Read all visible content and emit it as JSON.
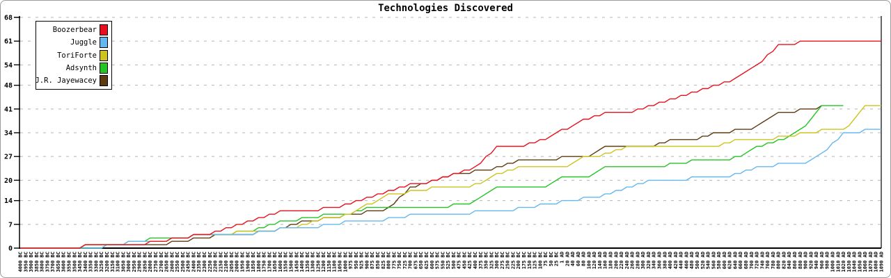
{
  "title": "Technologies Discovered",
  "colors": {
    "background": "#ffffff",
    "axis": "#000000",
    "gridline": "#b4b4b4",
    "border": "#9a9a9a"
  },
  "legend": {
    "position": "top-left"
  },
  "chart_data": {
    "type": "line",
    "title": "Technologies Discovered",
    "xlabel": "",
    "ylabel": "",
    "ylim": [
      0,
      68
    ],
    "grid": "horizontal dashed",
    "legend_position": "top-left",
    "y_ticks": [
      0,
      7,
      14,
      20,
      27,
      34,
      41,
      48,
      54,
      61,
      68
    ],
    "x_tick_labels": [
      "4000 BC",
      "3950 BC",
      "3900 BC",
      "3850 BC",
      "3800 BC",
      "3750 BC",
      "3700 BC",
      "3650 BC",
      "3600 BC",
      "3550 BC",
      "3500 BC",
      "3450 BC",
      "3400 BC",
      "3350 BC",
      "3300 BC",
      "3250 BC",
      "3200 BC",
      "3150 BC",
      "3100 BC",
      "3050 BC",
      "3000 BC",
      "2950 BC",
      "2900 BC",
      "2850 BC",
      "2800 BC",
      "2750 BC",
      "2700 BC",
      "2650 BC",
      "2600 BC",
      "2550 BC",
      "2500 BC",
      "2450 BC",
      "2400 BC",
      "2350 BC",
      "2300 BC",
      "2250 BC",
      "2200 BC",
      "2150 BC",
      "2100 BC",
      "2050 BC",
      "2000 BC",
      "1950 BC",
      "1900 BC",
      "1850 BC",
      "1800 BC",
      "1750 BC",
      "1700 BC",
      "1650 BC",
      "1600 BC",
      "1550 BC",
      "1500 BC",
      "1450 BC",
      "1400 BC",
      "1350 BC",
      "1300 BC",
      "1250 BC",
      "1200 BC",
      "1150 BC",
      "1100 BC",
      "1050 BC",
      "1000 BC",
      "975 BC",
      "950 BC",
      "925 BC",
      "900 BC",
      "875 BC",
      "850 BC",
      "825 BC",
      "800 BC",
      "775 BC",
      "750 BC",
      "725 BC",
      "700 BC",
      "675 BC",
      "650 BC",
      "625 BC",
      "600 BC",
      "575 BC",
      "550 BC",
      "525 BC",
      "500 BC",
      "475 BC",
      "450 BC",
      "425 BC",
      "400 BC",
      "375 BC",
      "350 BC",
      "325 BC",
      "300 BC",
      "275 BC",
      "250 BC",
      "225 BC",
      "200 BC",
      "175 BC",
      "150 BC",
      "125 BC",
      "100 BC",
      "75 BC",
      "50 BC",
      "25 BC",
      "1 AD",
      "20 AD",
      "40 AD",
      "60 AD",
      "80 AD",
      "100 AD",
      "120 AD",
      "140 AD",
      "160 AD",
      "180 AD",
      "200 AD",
      "220 AD",
      "240 AD",
      "260 AD",
      "280 AD",
      "300 AD",
      "320 AD",
      "340 AD",
      "360 AD",
      "380 AD",
      "400 AD",
      "420 AD",
      "440 AD",
      "460 AD",
      "480 AD",
      "500 AD",
      "520 AD",
      "540 AD",
      "560 AD",
      "580 AD",
      "600 AD",
      "620 AD",
      "640 AD",
      "660 AD",
      "680 AD",
      "700 AD",
      "720 AD",
      "740 AD",
      "760 AD",
      "780 AD",
      "800 AD",
      "820 AD",
      "840 AD",
      "860 AD",
      "880 AD",
      "900 AD",
      "920 AD",
      "940 AD",
      "960 AD",
      "980 AD",
      "1000 AD",
      "1010 AD",
      "1020 AD",
      "1030 AD",
      "1040 AD",
      "1050 AD",
      "1060 AD",
      "1070 AD",
      "1080 AD",
      "1090 AD"
    ],
    "sample_tick_indices": [
      0,
      4,
      8,
      12,
      16,
      20,
      24,
      28,
      32,
      36,
      40,
      44,
      48,
      52,
      56,
      60,
      64,
      68,
      72,
      76,
      80,
      84,
      88,
      92,
      96,
      100,
      104,
      108,
      112,
      116,
      120,
      124,
      128,
      132,
      136,
      140,
      144,
      148,
      152,
      156,
      159
    ],
    "series": [
      {
        "name": "Boozerbear",
        "color": "#e8101e",
        "values": [
          0,
          0,
          0,
          1,
          1,
          1,
          2,
          3,
          4,
          5,
          7,
          9,
          11,
          11,
          12,
          13,
          15,
          17,
          19,
          20,
          22,
          24,
          30,
          30,
          32,
          35,
          38,
          40,
          40,
          42,
          44,
          46,
          48,
          50,
          54,
          60,
          61,
          61,
          61,
          61,
          61
        ]
      },
      {
        "name": "Juggle",
        "color": "#63b8f0",
        "values": [
          0,
          0,
          0,
          0,
          1,
          2,
          2,
          3,
          4,
          4,
          4,
          5,
          6,
          6,
          7,
          8,
          8,
          9,
          10,
          10,
          10,
          11,
          11,
          12,
          13,
          14,
          15,
          16,
          18,
          20,
          20,
          21,
          21,
          22,
          24,
          25,
          25,
          28,
          34,
          35,
          35
        ]
      },
      {
        "name": "ToriForte",
        "color": "#cdc41e",
        "values": [
          0,
          0,
          0,
          1,
          1,
          2,
          2,
          3,
          4,
          4,
          5,
          5,
          6,
          7,
          9,
          10,
          13,
          16,
          17,
          18,
          18,
          19,
          22,
          24,
          24,
          24,
          27,
          28,
          30,
          30,
          30,
          30,
          30,
          32,
          32,
          33,
          34,
          35,
          35,
          42,
          42
        ]
      },
      {
        "name": "Adsynth",
        "color": "#25c425",
        "values": [
          0,
          0,
          0,
          0,
          1,
          2,
          3,
          3,
          4,
          4,
          5,
          6,
          8,
          9,
          10,
          10,
          12,
          12,
          12,
          12,
          13,
          14,
          18,
          18,
          18,
          21,
          21,
          24,
          24,
          24,
          25,
          26,
          26,
          27,
          30,
          32,
          35,
          42,
          42,
          null,
          null
        ]
      },
      {
        "name": "J.R. Jayewacey",
        "color": "#5e3a10",
        "values": [
          0,
          0,
          0,
          1,
          1,
          1,
          1,
          2,
          3,
          4,
          4,
          5,
          6,
          8,
          9,
          10,
          11,
          12,
          18,
          20,
          22,
          23,
          24,
          26,
          26,
          27,
          27,
          30,
          30,
          30,
          32,
          32,
          34,
          35,
          36,
          40,
          41,
          42,
          null,
          null,
          null
        ]
      }
    ]
  }
}
